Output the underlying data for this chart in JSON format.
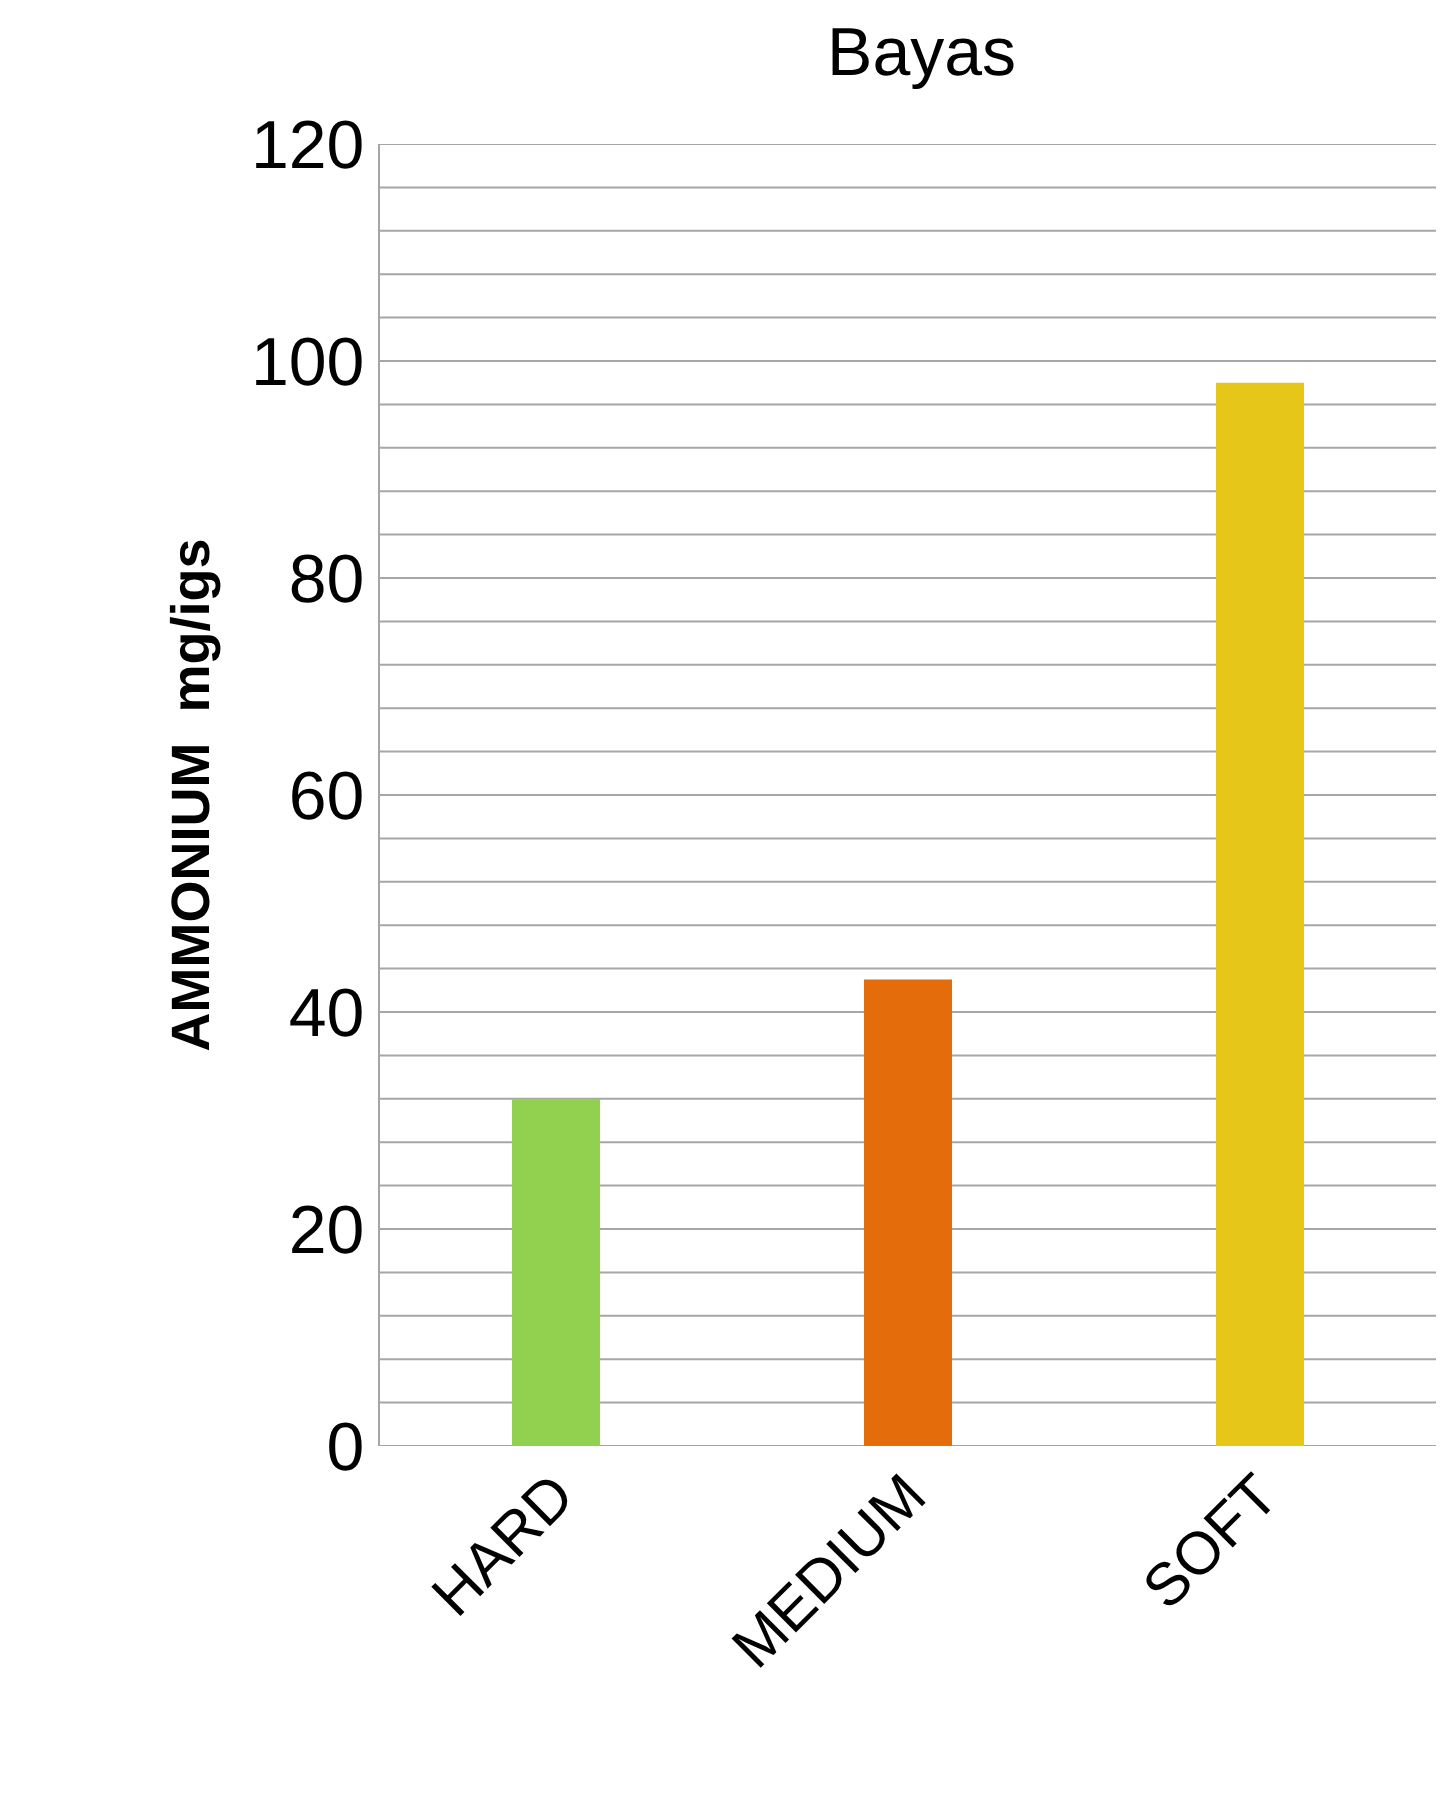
{
  "chart_data": {
    "type": "bar",
    "title": "Bayas",
    "ylabel": "AMMONIUM  mg/igs",
    "categories": [
      "HARD",
      "MEDIUM",
      "SOFT"
    ],
    "values": [
      32,
      43,
      98
    ],
    "colors": [
      "#92d050",
      "#e46c0a",
      "#e6c619"
    ],
    "ylim": [
      0,
      120
    ],
    "yticks": [
      0,
      {
        "value": 4,
        "label": null
      },
      {
        "value": 8,
        "label": null
      },
      {
        "value": 12,
        "label": null
      },
      {
        "value": 16,
        "label": null
      },
      20,
      {
        "value": 24,
        "label": null
      },
      {
        "value": 28,
        "label": null
      },
      {
        "value": 32,
        "label": null
      },
      {
        "value": 36,
        "label": null
      },
      40,
      {
        "value": 44,
        "label": null
      },
      {
        "value": 48,
        "label": null
      },
      {
        "value": 52,
        "label": null
      },
      {
        "value": 56,
        "label": null
      },
      60,
      {
        "value": 64,
        "label": null
      },
      {
        "value": 68,
        "label": null
      },
      {
        "value": 72,
        "label": null
      },
      {
        "value": 76,
        "label": null
      },
      80,
      {
        "value": 84,
        "label": null
      },
      {
        "value": 88,
        "label": null
      },
      {
        "value": 92,
        "label": null
      },
      {
        "value": 96,
        "label": null
      },
      100,
      {
        "value": 104,
        "label": null
      },
      {
        "value": 108,
        "label": null
      },
      {
        "value": 112,
        "label": null
      },
      {
        "value": 116,
        "label": null
      },
      120
    ],
    "grid": "y"
  }
}
